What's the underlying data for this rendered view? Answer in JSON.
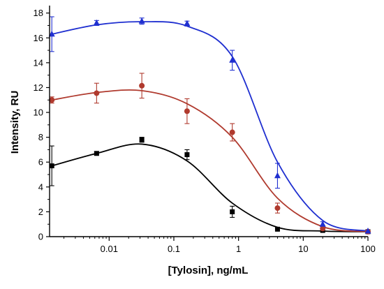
{
  "chart_data": {
    "type": "scatter",
    "title": "",
    "xlabel": "[Tylosin], ng/mL",
    "ylabel": "Intensity, RU",
    "xscale": "log",
    "xlim": [
      0.0012,
      100
    ],
    "ylim": [
      0,
      18.6
    ],
    "x_ticks": [
      0.01,
      0.1,
      1,
      10,
      100
    ],
    "x_tick_labels": [
      "0.01",
      "0.1",
      "1",
      "10",
      "100"
    ],
    "y_ticks": [
      0,
      2,
      4,
      6,
      8,
      10,
      12,
      14,
      16,
      18
    ],
    "y_tick_labels": [
      "0",
      "2",
      "4",
      "6",
      "8",
      "10",
      "12",
      "14",
      "16",
      "18"
    ],
    "grid": false,
    "legend": "none",
    "series": [
      {
        "color": "#000000",
        "marker": "square",
        "x": [
          0.0013,
          0.0064,
          0.032,
          0.16,
          0.8,
          4,
          20,
          100
        ],
        "y": [
          5.7,
          6.7,
          7.8,
          6.6,
          2.0,
          0.6,
          0.5,
          0.4
        ],
        "err": [
          1.6,
          0.15,
          0.2,
          0.4,
          0.45,
          0.1,
          0.1,
          0.1
        ],
        "fit_y": [
          5.7,
          6.7,
          7.45,
          6.1,
          2.7,
          0.75,
          0.45,
          0.4
        ]
      },
      {
        "color": "#b03a2e",
        "marker": "circle",
        "x": [
          0.0013,
          0.0064,
          0.032,
          0.16,
          0.8,
          4,
          20,
          100
        ],
        "y": [
          11.0,
          11.55,
          12.15,
          10.1,
          8.4,
          2.3,
          0.65,
          0.4
        ],
        "err": [
          0.25,
          0.8,
          1.0,
          1.0,
          0.7,
          0.4,
          0.2,
          0.1
        ],
        "fit_y": [
          11.0,
          11.6,
          11.75,
          10.7,
          8.0,
          3.1,
          0.8,
          0.4
        ]
      },
      {
        "color": "#1f2fd0",
        "marker": "triangle",
        "x": [
          0.0013,
          0.0064,
          0.032,
          0.16,
          0.8,
          4,
          20,
          100
        ],
        "y": [
          16.3,
          17.2,
          17.35,
          17.15,
          14.2,
          4.9,
          1.0,
          0.45
        ],
        "err": [
          1.4,
          0.2,
          0.25,
          0.2,
          0.8,
          1.0,
          0.2,
          0.1
        ],
        "fit_y": [
          16.3,
          17.05,
          17.3,
          16.95,
          14.5,
          6.0,
          1.3,
          0.45
        ]
      }
    ]
  }
}
